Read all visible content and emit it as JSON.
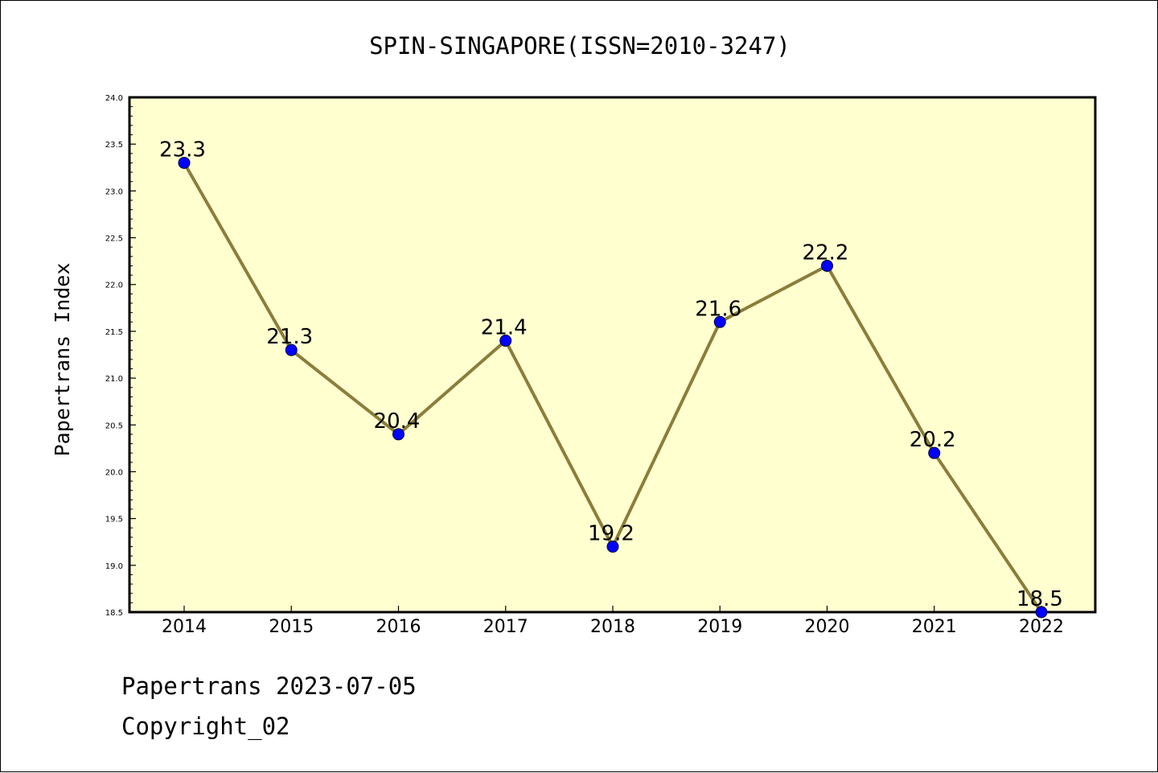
{
  "chart_data": {
    "type": "line",
    "title": "SPIN-SINGAPORE(ISSN=2010-3247)",
    "xlabel": "",
    "ylabel": "Papertrans Index",
    "categories": [
      "2014",
      "2015",
      "2016",
      "2017",
      "2018",
      "2019",
      "2020",
      "2021",
      "2022"
    ],
    "series": [
      {
        "values": [
          23.3,
          21.3,
          20.4,
          21.4,
          19.2,
          21.6,
          22.2,
          20.2,
          18.5
        ],
        "labels": [
          "23.3",
          "21.3",
          "20.4",
          "21.4",
          "19.2",
          "21.6",
          "22.2",
          "20.2",
          "18.5"
        ]
      }
    ],
    "ylim": [
      18.5,
      24.0
    ],
    "yticks": [
      "18.5",
      "19.0",
      "19.5",
      "20.0",
      "20.5",
      "21.0",
      "21.5",
      "22.0",
      "22.5",
      "23.0",
      "23.5",
      "24.0"
    ],
    "grid": false,
    "colors": {
      "plot_background": "#ffffd0",
      "line": "#8b7d3a",
      "marker": "#0000ff"
    }
  },
  "footer": {
    "line1": "Papertrans 2023-07-05",
    "line2": "Copyright_02"
  }
}
